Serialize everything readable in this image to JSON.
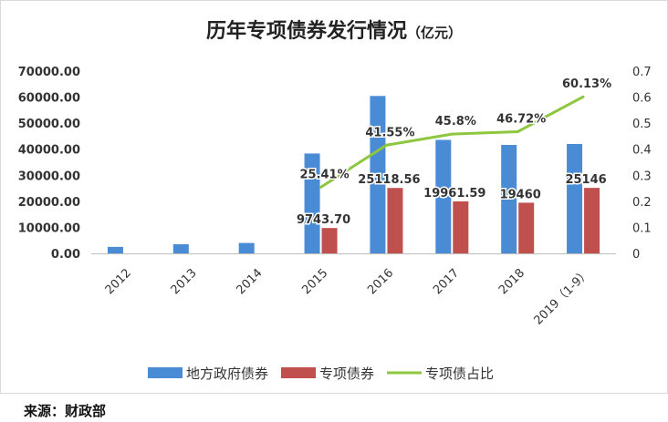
{
  "chart_data": {
    "type": "bar",
    "title": "历年专项债券发行情况",
    "title_unit": "（亿元）",
    "categories": [
      "2012",
      "2013",
      "2014",
      "2015",
      "2016",
      "2017",
      "2018",
      "2019（1-9）"
    ],
    "series": [
      {
        "name": "地方政府债券",
        "type": "bar",
        "axis": "left",
        "color": "#4a8bd6",
        "values": [
          2500,
          3500,
          4000,
          38350,
          60450,
          43580,
          41650,
          42000
        ],
        "labels": []
      },
      {
        "name": "专项债券",
        "type": "bar",
        "axis": "left",
        "color": "#c0504d",
        "values": [
          null,
          null,
          null,
          9743.7,
          25118.56,
          19961.59,
          19460,
          25146
        ],
        "labels": [
          "",
          "",
          "",
          "9743.70",
          "25118.56",
          "19961.59",
          "19460",
          "25146"
        ]
      },
      {
        "name": "专项债占比",
        "type": "line",
        "axis": "right",
        "color": "#8dc63f",
        "values": [
          null,
          null,
          null,
          0.2541,
          0.4155,
          0.458,
          0.4672,
          0.6013
        ],
        "labels": [
          "",
          "",
          "",
          "25.41%",
          "41.55%",
          "45.8%",
          "46.72%",
          "60.13%"
        ]
      }
    ],
    "y_left": {
      "min": 0,
      "max": 70000,
      "ticks": [
        "0.00",
        "10000.00",
        "20000.00",
        "30000.00",
        "40000.00",
        "50000.00",
        "60000.00",
        "70000.00"
      ]
    },
    "y_right": {
      "min": 0,
      "max": 0.7,
      "ticks": [
        "0",
        "0.1",
        "0.2",
        "0.3",
        "0.4",
        "0.5",
        "0.6",
        "0.7"
      ]
    },
    "grid": false,
    "legend": "bottom"
  },
  "source": "来源：财政部"
}
